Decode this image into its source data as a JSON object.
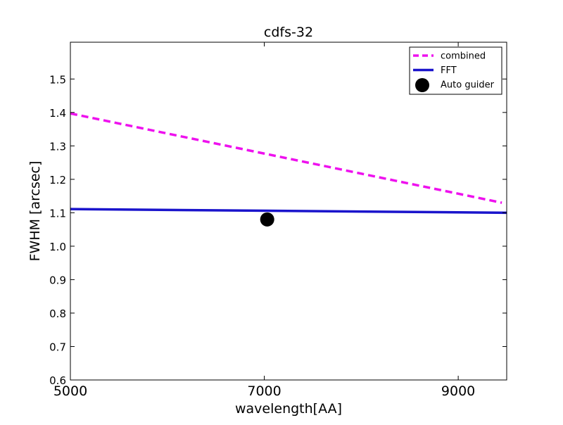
{
  "chart_data": {
    "type": "line",
    "title": "cdfs-32",
    "xlabel": "wavelength[AA]",
    "ylabel": "FWHM [arcsec]",
    "xlim": [
      5000,
      9500
    ],
    "ylim": [
      0.6,
      1.61
    ],
    "x_ticks": [
      5000,
      7000,
      9000
    ],
    "y_ticks": [
      0.6,
      0.7,
      0.8,
      0.9,
      1.0,
      1.1,
      1.2,
      1.3,
      1.4,
      1.5
    ],
    "grid": false,
    "legend_position": "top-right",
    "series": [
      {
        "name": "combined",
        "kind": "line",
        "line_style": "dashed",
        "color": "#ee11ee",
        "x": [
          5000,
          9450
        ],
        "y": [
          1.397,
          1.13
        ]
      },
      {
        "name": "FFT",
        "kind": "line",
        "line_style": "solid",
        "color": "#1a14cc",
        "x": [
          5000,
          9500
        ],
        "y": [
          1.111,
          1.1
        ]
      },
      {
        "name": "Auto guider",
        "kind": "scatter",
        "color": "#000000",
        "x": [
          7030
        ],
        "y": [
          1.08
        ]
      }
    ]
  }
}
